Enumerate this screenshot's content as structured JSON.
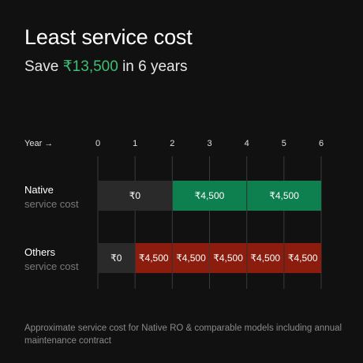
{
  "header": {
    "title": "Least service cost",
    "subtitle_prefix": "Save ",
    "subtitle_highlight": "₹13,500",
    "subtitle_suffix": " in 6 years"
  },
  "footnote": "Approximate service cost for Native RO & comparable models including annual maintenance contract",
  "chart_data": {
    "type": "bar",
    "orientation": "horizontal-timeline",
    "xlabel": "Year →",
    "ticks": [
      "0",
      "1",
      "2",
      "3",
      "4",
      "5",
      "6"
    ],
    "xlim": [
      0,
      6
    ],
    "grid": true,
    "rows": [
      {
        "name": "Native",
        "subname": "service cost",
        "segments": [
          {
            "start": 0,
            "end": 2,
            "label": "₹0",
            "color": "#2a2a2a"
          },
          {
            "start": 2,
            "end": 4,
            "label": "₹4,500",
            "color": "#0e7f4f"
          },
          {
            "start": 4,
            "end": 6,
            "label": "₹4,500",
            "color": "#0e7f4f"
          }
        ]
      },
      {
        "name": "Others",
        "subname": "service cost",
        "segments": [
          {
            "start": 0,
            "end": 1,
            "label": "₹0",
            "color": "#2a2a2a"
          },
          {
            "start": 1,
            "end": 2,
            "label": "₹4,500",
            "color": "#8c1d0e"
          },
          {
            "start": 2,
            "end": 3,
            "label": "₹4,500",
            "color": "#8c1d0e"
          },
          {
            "start": 3,
            "end": 4,
            "label": "₹4,500",
            "color": "#8c1d0e"
          },
          {
            "start": 4,
            "end": 5,
            "label": "₹4,500",
            "color": "#8c1d0e"
          },
          {
            "start": 5,
            "end": 6,
            "label": "₹4,500",
            "color": "#8c1d0e"
          }
        ]
      }
    ]
  }
}
